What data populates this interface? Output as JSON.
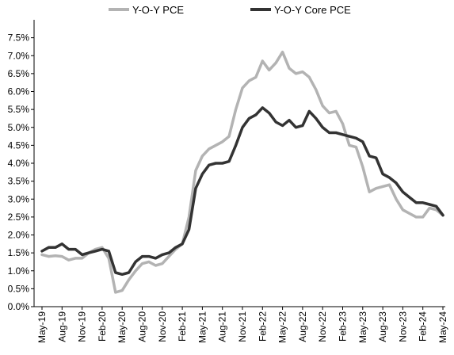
{
  "chart_data": {
    "type": "line",
    "title": "",
    "xlabel": "",
    "ylabel": "",
    "ylim": [
      0,
      8
    ],
    "y_ticks": [
      "0.0%",
      "0.5%",
      "1.0%",
      "1.5%",
      "2.0%",
      "2.5%",
      "3.0%",
      "3.5%",
      "4.0%",
      "4.5%",
      "5.0%",
      "5.5%",
      "6.0%",
      "6.5%",
      "7.0%",
      "7.5%"
    ],
    "x_ticks": [
      "May-19",
      "Aug-19",
      "Nov-19",
      "Feb-20",
      "May-20",
      "Aug-20",
      "Nov-20",
      "Feb-21",
      "May-21",
      "Aug-21",
      "Nov-21",
      "Feb-22",
      "May-22",
      "Aug-22",
      "Nov-22",
      "Feb-23",
      "May-23",
      "Aug-23",
      "Nov-23",
      "Feb-24",
      "May-24"
    ],
    "grid": false,
    "legend_position": "top",
    "x": [
      "May-19",
      "Jun-19",
      "Jul-19",
      "Aug-19",
      "Sep-19",
      "Oct-19",
      "Nov-19",
      "Dec-19",
      "Jan-20",
      "Feb-20",
      "Mar-20",
      "Apr-20",
      "May-20",
      "Jun-20",
      "Jul-20",
      "Aug-20",
      "Sep-20",
      "Oct-20",
      "Nov-20",
      "Dec-20",
      "Jan-21",
      "Feb-21",
      "Mar-21",
      "Apr-21",
      "May-21",
      "Jun-21",
      "Jul-21",
      "Aug-21",
      "Sep-21",
      "Oct-21",
      "Nov-21",
      "Dec-21",
      "Jan-22",
      "Feb-22",
      "Mar-22",
      "Apr-22",
      "May-22",
      "Jun-22",
      "Jul-22",
      "Aug-22",
      "Sep-22",
      "Oct-22",
      "Nov-22",
      "Dec-22",
      "Jan-23",
      "Feb-23",
      "Mar-23",
      "Apr-23",
      "May-23",
      "Jun-23",
      "Jul-23",
      "Aug-23",
      "Sep-23",
      "Oct-23",
      "Nov-23",
      "Dec-23",
      "Jan-24",
      "Feb-24",
      "Mar-24",
      "Apr-24",
      "May-24"
    ],
    "series": [
      {
        "name": "Y-O-Y PCE",
        "color": "#b3b3b3",
        "values": [
          1.45,
          1.4,
          1.42,
          1.4,
          1.3,
          1.35,
          1.35,
          1.5,
          1.6,
          1.65,
          1.35,
          0.4,
          0.45,
          0.75,
          1.0,
          1.2,
          1.25,
          1.15,
          1.2,
          1.4,
          1.6,
          1.75,
          2.5,
          3.8,
          4.2,
          4.4,
          4.5,
          4.6,
          4.75,
          5.5,
          6.1,
          6.3,
          6.4,
          6.85,
          6.6,
          6.8,
          7.1,
          6.65,
          6.5,
          6.55,
          6.4,
          6.05,
          5.6,
          5.4,
          5.45,
          5.1,
          4.5,
          4.45,
          3.9,
          3.2,
          3.3,
          3.35,
          3.4,
          3.0,
          2.7,
          2.6,
          2.5,
          2.5,
          2.75,
          2.7,
          2.55
        ]
      },
      {
        "name": "Y-O-Y Core PCE",
        "color": "#333333",
        "values": [
          1.55,
          1.65,
          1.65,
          1.75,
          1.6,
          1.6,
          1.45,
          1.5,
          1.55,
          1.6,
          1.55,
          0.95,
          0.9,
          0.95,
          1.25,
          1.4,
          1.4,
          1.35,
          1.45,
          1.5,
          1.65,
          1.75,
          2.15,
          3.3,
          3.7,
          3.95,
          4.0,
          4.0,
          4.05,
          4.5,
          5.0,
          5.25,
          5.35,
          5.55,
          5.4,
          5.15,
          5.05,
          5.2,
          5.0,
          5.05,
          5.45,
          5.25,
          5.0,
          4.85,
          4.85,
          4.8,
          4.75,
          4.7,
          4.6,
          4.2,
          4.15,
          3.7,
          3.6,
          3.45,
          3.2,
          3.05,
          2.9,
          2.9,
          2.85,
          2.8,
          2.55
        ]
      }
    ]
  }
}
